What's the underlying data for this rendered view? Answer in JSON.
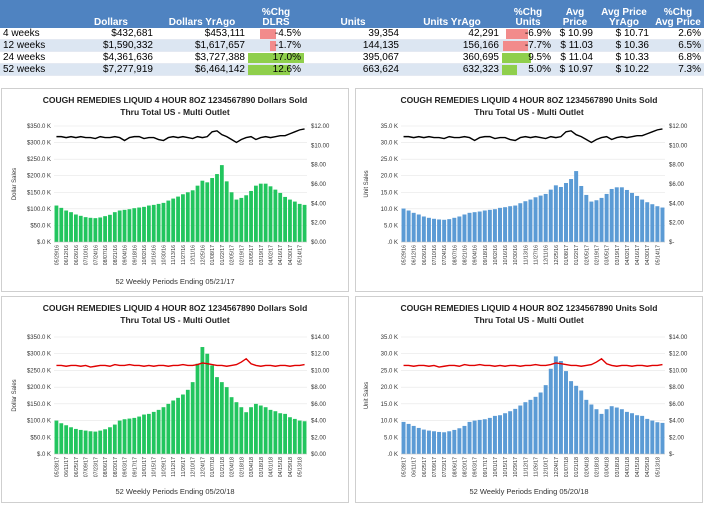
{
  "table": {
    "headers": [
      "",
      "Dollars",
      "Dollars YrAgo",
      "%Chg DLRS",
      "Units",
      "Units YrAgo",
      "%Chg Units",
      "Avg Price",
      "Avg Price YrAgo",
      "%Chg Avg Price"
    ],
    "rows": [
      {
        "label": "4 weeks",
        "dollars": "$432,681",
        "dollars_yrago": "$453,111",
        "chg_dlrs": "-4.5%",
        "chg_dlrs_value": -4.5,
        "units": "39,354",
        "units_yrago": "42,291",
        "chg_units": "-6.9%",
        "chg_units_value": -6.9,
        "avg_price": "$ 10.99",
        "avg_price_yrago": "$ 10.71",
        "chg_avg_price": "2.6%"
      },
      {
        "label": "12 weeks",
        "dollars": "$1,590,332",
        "dollars_yrago": "$1,617,657",
        "chg_dlrs": "-1.7%",
        "chg_dlrs_value": -1.7,
        "units": "144,135",
        "units_yrago": "156,166",
        "chg_units": "-7.7%",
        "chg_units_value": -7.7,
        "avg_price": "$ 11.03",
        "avg_price_yrago": "$ 10.36",
        "chg_avg_price": "6.5%"
      },
      {
        "label": "24 weeks",
        "dollars": "$4,361,636",
        "dollars_yrago": "$3,727,388",
        "chg_dlrs": "17.0%",
        "chg_dlrs_value": 17.0,
        "units": "395,067",
        "units_yrago": "360,695",
        "chg_units": "9.5%",
        "chg_units_value": 9.5,
        "avg_price": "$ 11.04",
        "avg_price_yrago": "$ 10.33",
        "chg_avg_price": "6.8%"
      },
      {
        "label": "52 weeks",
        "dollars": "$7,277,919",
        "dollars_yrago": "$6,464,142",
        "chg_dlrs": "12.6%",
        "chg_dlrs_value": 12.6,
        "units": "663,624",
        "units_yrago": "632,323",
        "chg_units": "5.0%",
        "chg_units_value": 5.0,
        "avg_price": "$ 10.97",
        "avg_price_yrago": "$ 10.22",
        "chg_avg_price": "7.3%"
      }
    ]
  },
  "colors": {
    "header_bg": "#4f83c1",
    "row_alt": "#dce6f2",
    "neg_bar": "#f28b8b",
    "pos_bar": "#8fcf4c",
    "green_bar": "#22c55e",
    "blue_bar": "#5b9bd5",
    "price_line_2017": "#000000",
    "price_line_2018": "#e00000"
  },
  "chart_data": [
    {
      "id": "dollars_2017",
      "type": "bar+line",
      "title": "COUGH REMEDIES LIQUID 4 HOUR 8OZ 1234567890 Dollars Sold",
      "subtitle": "Thru Total US - Multi Outlet",
      "xlabel": "52 Weekly Periods Ending 05/21/17",
      "ylabel": "Dollar Sales",
      "bar_color": "#22c55e",
      "line_color": "#000000",
      "ylim": [
        0,
        350000
      ],
      "yticks": [
        0,
        50000,
        100000,
        150000,
        200000,
        250000,
        300000,
        350000
      ],
      "yticklabels": [
        "$.0 K",
        "$50.0 K",
        "$100.0 K",
        "$150.0 K",
        "$200.0 K",
        "$250.0 K",
        "$300.0 K",
        "$350.0 K"
      ],
      "y2lim": [
        0,
        12
      ],
      "y2ticks": [
        0,
        2,
        4,
        6,
        8,
        10,
        12
      ],
      "y2ticklabels": [
        "$0.00",
        "$2.00",
        "$4.00",
        "$6.00",
        "$8.00",
        "$10.00",
        "$12.00"
      ],
      "xticklabels": [
        "05/29/16",
        "06/12/16",
        "06/26/16",
        "07/10/16",
        "07/24/16",
        "08/07/16",
        "08/21/16",
        "09/04/16",
        "09/18/16",
        "10/02/16",
        "10/16/16",
        "10/30/16",
        "11/13/16",
        "11/27/16",
        "12/11/16",
        "12/25/16",
        "01/08/17",
        "01/22/17",
        "02/05/17",
        "02/19/17",
        "03/05/17",
        "03/19/17",
        "04/02/17",
        "04/16/17",
        "04/30/17",
        "05/14/17"
      ],
      "values": [
        110000,
        103000,
        95000,
        90000,
        83000,
        79000,
        75000,
        73000,
        72000,
        74000,
        78000,
        82000,
        90000,
        95000,
        97000,
        99000,
        102000,
        104000,
        106000,
        110000,
        112000,
        115000,
        118000,
        125000,
        131000,
        137000,
        144000,
        150000,
        156000,
        170000,
        185000,
        180000,
        193000,
        205000,
        232000,
        183000,
        150000,
        128000,
        133000,
        141000,
        154000,
        170000,
        176000,
        176000,
        168000,
        158000,
        148000,
        136000,
        128000,
        122000,
        115000,
        112000
      ],
      "price": [
        10.9,
        10.9,
        10.8,
        10.9,
        10.8,
        10.9,
        10.8,
        10.8,
        10.7,
        10.9,
        10.8,
        10.8,
        10.9,
        10.8,
        10.5,
        10.8,
        10.9,
        10.9,
        10.7,
        10.8,
        10.8,
        10.6,
        10.5,
        10.8,
        10.9,
        10.8,
        10.9,
        10.8,
        10.7,
        10.9,
        10.8,
        10.9,
        11.4,
        11.5,
        11.1,
        10.9,
        10.6,
        10.3,
        10.6,
        10.8,
        10.9,
        10.6,
        10.8,
        10.9,
        10.8,
        10.9,
        11.0,
        11.0,
        11.2,
        11.4,
        11.6,
        11.7
      ]
    },
    {
      "id": "units_2017",
      "type": "bar+line",
      "title": "COUGH REMEDIES LIQUID 4 HOUR 8OZ 1234567890 Units Sold",
      "subtitle": "Thru Total US - Multi Outlet",
      "xlabel": "",
      "ylabel": "Unit Sales",
      "bar_color": "#5b9bd5",
      "line_color": "#000000",
      "ylim": [
        0,
        35000
      ],
      "yticks": [
        0,
        5000,
        10000,
        15000,
        20000,
        25000,
        30000,
        35000
      ],
      "yticklabels": [
        ".0 K",
        "5.0 K",
        "10.0 K",
        "15.0 K",
        "20.0 K",
        "25.0 K",
        "30.0 K",
        "35.0 K"
      ],
      "y2lim": [
        0,
        12
      ],
      "y2ticks": [
        0,
        2,
        4,
        6,
        8,
        10,
        12
      ],
      "y2ticklabels": [
        "$-",
        "$2.00",
        "$4.00",
        "$6.00",
        "$8.00",
        "$10.00",
        "$12.00"
      ],
      "xticklabels": [
        "05/29/16",
        "06/12/16",
        "06/26/16",
        "07/10/16",
        "07/24/16",
        "08/07/16",
        "08/21/16",
        "09/04/16",
        "09/18/16",
        "10/02/16",
        "10/16/16",
        "10/30/16",
        "11/13/16",
        "11/27/16",
        "12/11/16",
        "12/25/16",
        "01/08/17",
        "01/22/17",
        "02/05/17",
        "02/19/17",
        "03/05/17",
        "03/19/17",
        "04/02/17",
        "04/16/17",
        "04/30/17",
        "05/14/17"
      ],
      "values": [
        10100,
        9500,
        8800,
        8300,
        7700,
        7300,
        7000,
        6800,
        6700,
        6900,
        7300,
        7700,
        8300,
        8800,
        9000,
        9200,
        9500,
        9700,
        9900,
        10300,
        10500,
        10800,
        11000,
        11700,
        12300,
        12800,
        13500,
        14000,
        14500,
        15800,
        17100,
        16600,
        17800,
        19000,
        21400,
        16900,
        14200,
        12200,
        12600,
        13300,
        14500,
        16000,
        16500,
        16500,
        15700,
        14800,
        13900,
        12800,
        12000,
        11400,
        10800,
        10400
      ],
      "price": [
        10.9,
        10.9,
        10.8,
        10.9,
        10.8,
        10.9,
        10.8,
        10.8,
        10.7,
        10.9,
        10.8,
        10.8,
        10.9,
        10.8,
        10.5,
        10.8,
        10.9,
        10.9,
        10.7,
        10.8,
        10.8,
        10.6,
        10.5,
        10.8,
        10.9,
        10.8,
        10.9,
        10.8,
        10.7,
        10.9,
        10.8,
        10.9,
        11.4,
        11.5,
        11.1,
        10.9,
        10.6,
        10.3,
        10.6,
        10.8,
        10.9,
        10.6,
        10.8,
        10.9,
        10.8,
        10.9,
        11.0,
        11.0,
        11.2,
        11.4,
        11.6,
        11.7
      ]
    },
    {
      "id": "dollars_2018",
      "type": "bar+line",
      "title": "COUGH REMEDIES LIQUID 4 HOUR 8OZ 1234567890 Dollars Sold",
      "subtitle": "Thru Total US - Multi Outlet",
      "xlabel": "52 Weekly Periods Ending 05/20/18",
      "ylabel": "Dollar Sales",
      "bar_color": "#22c55e",
      "line_color": "#e00000",
      "ylim": [
        0,
        350000
      ],
      "yticks": [
        0,
        50000,
        100000,
        150000,
        200000,
        250000,
        300000,
        350000
      ],
      "yticklabels": [
        "$.0 K",
        "$50.0 K",
        "$100.0 K",
        "$150.0 K",
        "$200.0 K",
        "$250.0 K",
        "$300.0 K",
        "$350.0 K"
      ],
      "y2lim": [
        0,
        14
      ],
      "y2ticks": [
        0,
        2,
        4,
        6,
        8,
        10,
        12,
        14
      ],
      "y2ticklabels": [
        "$0.00",
        "$2.00",
        "$4.00",
        "$6.00",
        "$8.00",
        "$10.00",
        "$12.00",
        "$14.00"
      ],
      "xticklabels": [
        "05/28/17",
        "06/11/17",
        "06/25/17",
        "07/09/17",
        "07/23/17",
        "08/06/17",
        "08/20/17",
        "09/03/17",
        "09/17/17",
        "10/01/17",
        "10/15/17",
        "10/29/17",
        "11/12/17",
        "11/26/17",
        "12/10/17",
        "12/24/17",
        "01/07/18",
        "01/21/18",
        "02/04/18",
        "02/18/18",
        "03/04/18",
        "03/18/18",
        "04/01/18",
        "04/15/18",
        "04/29/18",
        "05/13/18"
      ],
      "values": [
        100000,
        92000,
        86000,
        80000,
        75000,
        72000,
        70000,
        68000,
        67000,
        70000,
        74000,
        80000,
        88000,
        100000,
        104000,
        106000,
        108000,
        112000,
        118000,
        120000,
        126000,
        132000,
        140000,
        150000,
        160000,
        168000,
        178000,
        192000,
        215000,
        270000,
        320000,
        300000,
        265000,
        230000,
        215000,
        200000,
        170000,
        155000,
        140000,
        125000,
        140000,
        150000,
        145000,
        140000,
        132000,
        128000,
        122000,
        120000,
        110000,
        105000,
        100000,
        98000
      ],
      "price": [
        10.6,
        10.6,
        10.5,
        10.6,
        10.6,
        10.5,
        10.6,
        10.4,
        10.5,
        10.6,
        10.6,
        10.5,
        10.7,
        10.6,
        10.6,
        10.7,
        10.6,
        10.6,
        10.5,
        10.6,
        10.5,
        10.6,
        10.6,
        10.5,
        10.6,
        10.6,
        10.7,
        10.6,
        10.6,
        10.7,
        10.9,
        10.8,
        10.7,
        10.6,
        10.6,
        10.5,
        10.6,
        10.7,
        11.0,
        11.4,
        10.8,
        10.6,
        10.5,
        10.6,
        10.6,
        10.5,
        10.6,
        10.6,
        10.5,
        10.6,
        10.6,
        10.7
      ]
    },
    {
      "id": "units_2018",
      "type": "bar+line",
      "title": "COUGH REMEDIES LIQUID 4 HOUR 8OZ 1234567890 Units Sold",
      "subtitle": "Thru Total US - Multi Outlet",
      "xlabel": "52 Weekly Periods Ending 05/20/18",
      "ylabel": "Unit Sales",
      "bar_color": "#5b9bd5",
      "line_color": "#e00000",
      "ylim": [
        0,
        35000
      ],
      "yticks": [
        0,
        5000,
        10000,
        15000,
        20000,
        25000,
        30000,
        35000
      ],
      "yticklabels": [
        ".0 K",
        "5.0 K",
        "10.0 K",
        "15.0 K",
        "20.0 K",
        "25.0 K",
        "30.0 K",
        "35.0 K"
      ],
      "y2lim": [
        0,
        14
      ],
      "y2ticks": [
        0,
        2,
        4,
        6,
        8,
        10,
        12,
        14
      ],
      "y2ticklabels": [
        "$-",
        "$2.00",
        "$4.00",
        "$6.00",
        "$8.00",
        "$10.00",
        "$12.00",
        "$14.00"
      ],
      "xticklabels": [
        "05/28/17",
        "06/11/17",
        "06/25/17",
        "07/09/17",
        "07/23/17",
        "08/06/17",
        "08/20/17",
        "09/03/17",
        "09/17/17",
        "10/01/17",
        "10/15/17",
        "10/29/17",
        "11/12/17",
        "11/26/17",
        "12/10/17",
        "12/24/17",
        "01/07/18",
        "01/21/18",
        "02/04/18",
        "02/18/18",
        "03/04/18",
        "03/18/18",
        "04/01/18",
        "04/15/18",
        "04/29/18",
        "05/13/18"
      ],
      "values": [
        9600,
        9000,
        8400,
        7800,
        7300,
        7000,
        6800,
        6600,
        6500,
        6800,
        7200,
        7700,
        8400,
        9600,
        10000,
        10200,
        10400,
        10800,
        11400,
        11600,
        12200,
        12800,
        13500,
        14500,
        15500,
        16200,
        17100,
        18400,
        20600,
        25500,
        29200,
        27800,
        24800,
        21800,
        20400,
        19000,
        16200,
        14800,
        13400,
        12000,
        13400,
        14300,
        13900,
        13400,
        12600,
        12200,
        11600,
        11400,
        10500,
        10000,
        9500,
        9300
      ],
      "price": [
        10.6,
        10.6,
        10.5,
        10.6,
        10.6,
        10.5,
        10.6,
        10.4,
        10.5,
        10.6,
        10.6,
        10.5,
        10.7,
        10.6,
        10.6,
        10.7,
        10.6,
        10.6,
        10.5,
        10.6,
        10.5,
        10.6,
        10.6,
        10.5,
        10.6,
        10.6,
        10.7,
        10.6,
        10.6,
        10.7,
        10.9,
        10.8,
        10.7,
        10.6,
        10.6,
        10.5,
        10.6,
        10.7,
        11.0,
        11.4,
        10.8,
        10.6,
        10.5,
        10.6,
        10.6,
        10.5,
        10.6,
        10.6,
        10.5,
        10.6,
        10.6,
        10.7
      ]
    }
  ]
}
